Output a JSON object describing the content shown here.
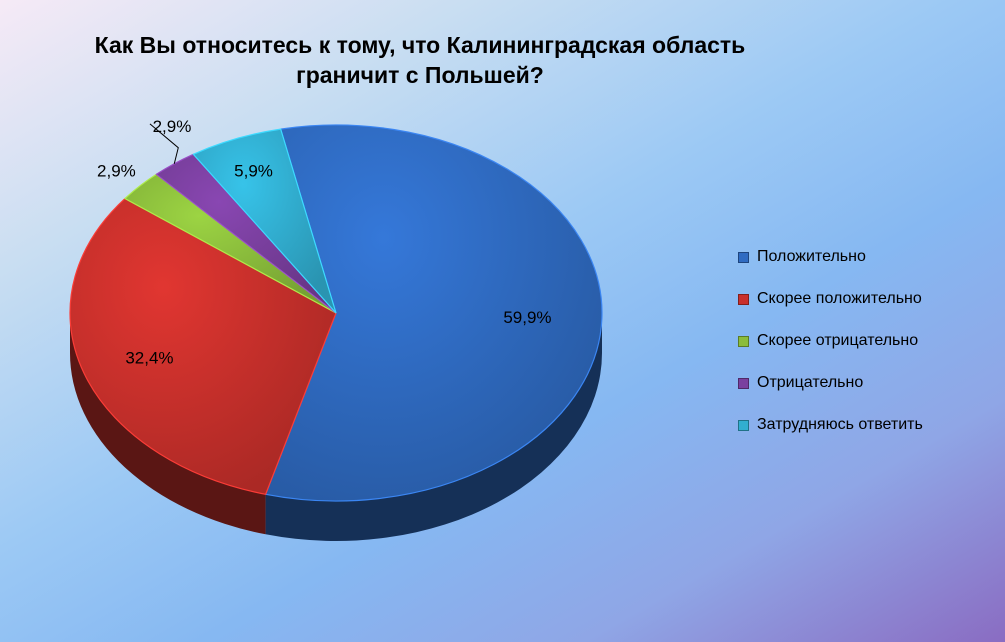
{
  "chart_data": {
    "type": "pie",
    "title": "Как Вы относитесь к тому, что Калининградская область граничит с Польшей?",
    "categories": [
      "Положительно",
      "Скорее положительно",
      "Скорее отрицательно",
      "Отрицательно",
      "Затрудняюсь ответить"
    ],
    "values": [
      59.9,
      32.4,
      2.9,
      2.9,
      5.9
    ],
    "labels": [
      "59,9%",
      "32,4%",
      "2,9%",
      "2,9%",
      "5,9%"
    ],
    "colors": [
      "#2f6bc2",
      "#c9302c",
      "#8bbd3c",
      "#7a3f9f",
      "#31aed0"
    ],
    "legend_position": "right",
    "style": "3d"
  }
}
